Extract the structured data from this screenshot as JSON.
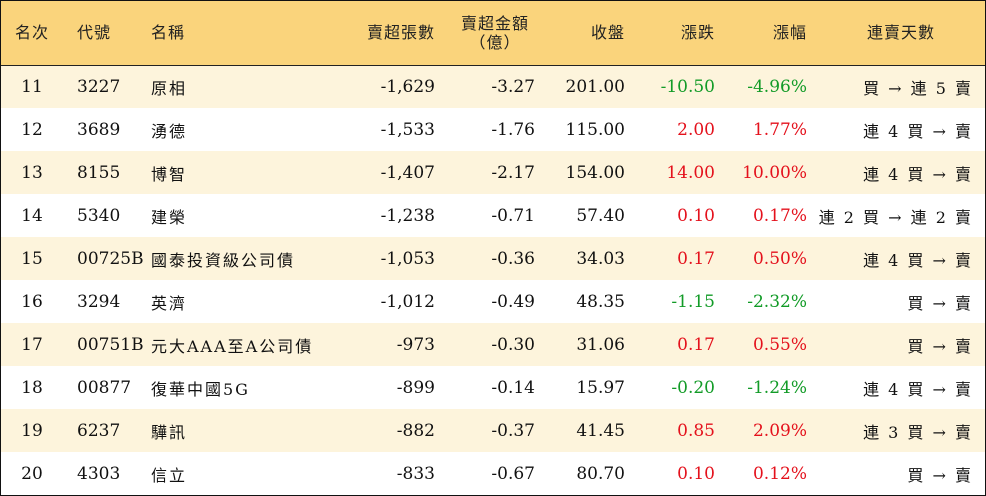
{
  "colors": {
    "header_bg": "#fad47c",
    "row_alt_bg": "#fdf4dc",
    "up": "#e4111c",
    "down": "#129b27"
  },
  "headers": {
    "rank": "名次",
    "code": "代號",
    "name": "名稱",
    "sell_volume": "賣超張數",
    "sell_amount_line1": "賣超金額",
    "sell_amount_line2": "（億）",
    "close": "收盤",
    "change": "漲跌",
    "pct": "漲幅",
    "streak": "連賣天數"
  },
  "rows": [
    {
      "rank": "11",
      "code": "3227",
      "name": "原相",
      "sell_volume": "-1,629",
      "sell_amount": "-3.27",
      "close": "201.00",
      "change": "-10.50",
      "pct": "-4.96%",
      "direction": "down",
      "streak": "買 → 連 5 賣"
    },
    {
      "rank": "12",
      "code": "3689",
      "name": "湧德",
      "sell_volume": "-1,533",
      "sell_amount": "-1.76",
      "close": "115.00",
      "change": "2.00",
      "pct": "1.77%",
      "direction": "up",
      "streak": "連 4 買 → 賣"
    },
    {
      "rank": "13",
      "code": "8155",
      "name": "博智",
      "sell_volume": "-1,407",
      "sell_amount": "-2.17",
      "close": "154.00",
      "change": "14.00",
      "pct": "10.00%",
      "direction": "up",
      "streak": "連 4 買 → 賣"
    },
    {
      "rank": "14",
      "code": "5340",
      "name": "建榮",
      "sell_volume": "-1,238",
      "sell_amount": "-0.71",
      "close": "57.40",
      "change": "0.10",
      "pct": "0.17%",
      "direction": "up",
      "streak": "連 2 買 → 連 2 賣"
    },
    {
      "rank": "15",
      "code": "00725B",
      "name": "國泰投資級公司債",
      "sell_volume": "-1,053",
      "sell_amount": "-0.36",
      "close": "34.03",
      "change": "0.17",
      "pct": "0.50%",
      "direction": "up",
      "streak": "連 4 買 → 賣"
    },
    {
      "rank": "16",
      "code": "3294",
      "name": "英濟",
      "sell_volume": "-1,012",
      "sell_amount": "-0.49",
      "close": "48.35",
      "change": "-1.15",
      "pct": "-2.32%",
      "direction": "down",
      "streak": "買 → 賣"
    },
    {
      "rank": "17",
      "code": "00751B",
      "name": "元大AAA至A公司債",
      "sell_volume": "-973",
      "sell_amount": "-0.30",
      "close": "31.06",
      "change": "0.17",
      "pct": "0.55%",
      "direction": "up",
      "streak": "買 → 賣"
    },
    {
      "rank": "18",
      "code": "00877",
      "name": "復華中國5G",
      "sell_volume": "-899",
      "sell_amount": "-0.14",
      "close": "15.97",
      "change": "-0.20",
      "pct": "-1.24%",
      "direction": "down",
      "streak": "連 4 買 → 賣"
    },
    {
      "rank": "19",
      "code": "6237",
      "name": "驊訊",
      "sell_volume": "-882",
      "sell_amount": "-0.37",
      "close": "41.45",
      "change": "0.85",
      "pct": "2.09%",
      "direction": "up",
      "streak": "連 3 買 → 賣"
    },
    {
      "rank": "20",
      "code": "4303",
      "name": "信立",
      "sell_volume": "-833",
      "sell_amount": "-0.67",
      "close": "80.70",
      "change": "0.10",
      "pct": "0.12%",
      "direction": "up",
      "streak": "買 → 賣"
    }
  ]
}
